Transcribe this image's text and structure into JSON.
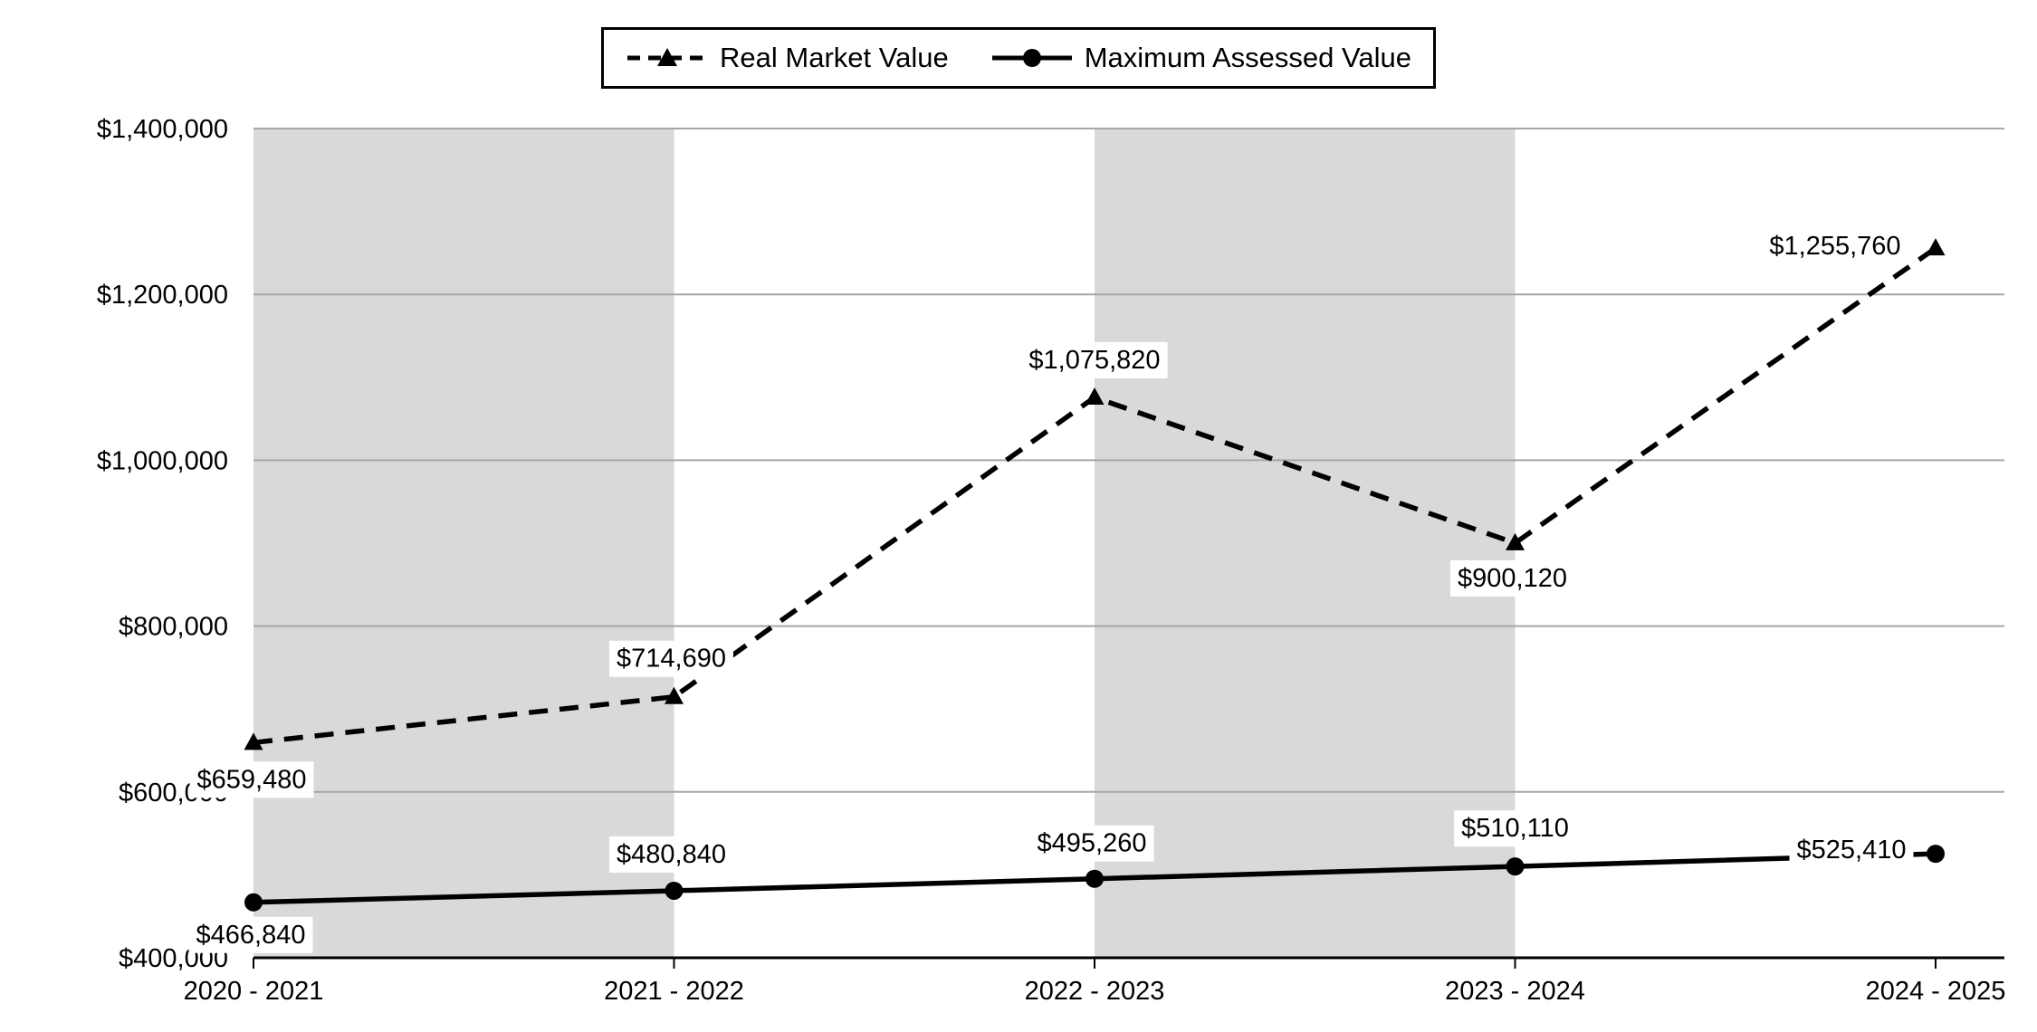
{
  "chart_data": {
    "type": "line",
    "title": "",
    "xlabel": "",
    "ylabel": "",
    "categories": [
      "2020 - 2021",
      "2021 - 2022",
      "2022 - 2023",
      "2023 - 2024",
      "2024 - 2025"
    ],
    "series": [
      {
        "name": "Real Market Value",
        "style": "dashed",
        "marker": "triangle",
        "values": [
          659480,
          714690,
          1075820,
          900120,
          1255760
        ],
        "labels": [
          "$659,480",
          "$714,690",
          "$1,075,820",
          "$900,120",
          "$1,255,760"
        ],
        "label_offsets": [
          [
            -2,
            40
          ],
          [
            -3,
            -43
          ],
          [
            0,
            -42
          ],
          [
            -3,
            38
          ],
          [
            -111,
            -3
          ]
        ]
      },
      {
        "name": "Maximum Assessed Value",
        "style": "solid",
        "marker": "circle",
        "values": [
          466840,
          480840,
          495260,
          510110,
          525410
        ],
        "labels": [
          "$466,840",
          "$480,840",
          "$495,260",
          "$510,110",
          "$525,410"
        ],
        "label_offsets": [
          [
            -3,
            35
          ],
          [
            -3,
            -41
          ],
          [
            -3,
            -40
          ],
          [
            0,
            -43
          ],
          [
            -93,
            -5
          ]
        ]
      }
    ],
    "y_axis": {
      "min": 400000,
      "max": 1400000,
      "step": 200000,
      "tick_labels": [
        "$400,000",
        "$600,000",
        "$800,000",
        "$1,000,000",
        "$1,200,000",
        "$1,400,000"
      ]
    },
    "plot_bands": {
      "color": "#d9d9d9",
      "intervals": [
        [
          0,
          1
        ],
        [
          2,
          3
        ]
      ]
    },
    "grid": true,
    "grid_color": "#a6a6a6",
    "axis_color": "#000000",
    "series_color": "#000000",
    "label_bg": "#ffffff",
    "legend_position": "top-center"
  }
}
